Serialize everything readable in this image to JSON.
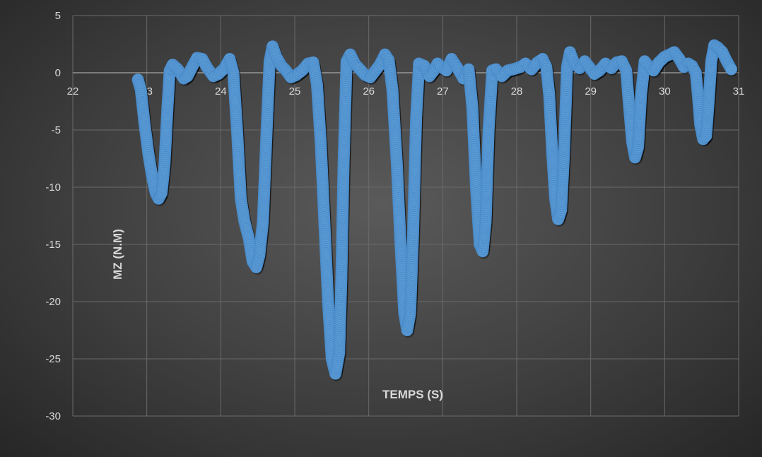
{
  "chart_data": {
    "type": "scatter",
    "title": "",
    "xlabel": "TEMPS (S)",
    "ylabel": "MZ (N.M)",
    "xlim": [
      22,
      31
    ],
    "ylim": [
      -30,
      5
    ],
    "x_ticks": [
      "22",
      "23",
      "24",
      "25",
      "26",
      "27",
      "28",
      "29",
      "30",
      "31"
    ],
    "y_ticks": [
      "5",
      "0",
      "-5",
      "-10",
      "-15",
      "-20",
      "-25",
      "-30"
    ],
    "grid": true,
    "legend": "none",
    "marker_color": "#5b9bd5",
    "series": [
      {
        "points": [
          [
            22.88,
            -0.6
          ],
          [
            22.92,
            -1.5
          ],
          [
            22.97,
            -4.5
          ],
          [
            23.02,
            -7.0
          ],
          [
            23.07,
            -9.0
          ],
          [
            23.12,
            -10.5
          ],
          [
            23.16,
            -11.0
          ],
          [
            23.2,
            -10.5
          ],
          [
            23.24,
            -8.0
          ],
          [
            23.28,
            -3.0
          ],
          [
            23.31,
            0.2
          ],
          [
            23.35,
            0.7
          ],
          [
            23.42,
            0.3
          ],
          [
            23.5,
            -0.5
          ],
          [
            23.55,
            -0.3
          ],
          [
            23.62,
            0.6
          ],
          [
            23.68,
            1.3
          ],
          [
            23.75,
            1.2
          ],
          [
            23.82,
            0.4
          ],
          [
            23.9,
            -0.3
          ],
          [
            23.97,
            -0.1
          ],
          [
            24.05,
            0.4
          ],
          [
            24.12,
            1.2
          ],
          [
            24.17,
            0.0
          ],
          [
            24.22,
            -5.0
          ],
          [
            24.27,
            -11.0
          ],
          [
            24.32,
            -13.0
          ],
          [
            24.38,
            -14.5
          ],
          [
            24.43,
            -16.5
          ],
          [
            24.48,
            -17.0
          ],
          [
            24.52,
            -16.0
          ],
          [
            24.57,
            -13.0
          ],
          [
            24.62,
            -5.0
          ],
          [
            24.66,
            1.0
          ],
          [
            24.7,
            2.3
          ],
          [
            24.75,
            1.4
          ],
          [
            24.82,
            0.6
          ],
          [
            24.88,
            0.2
          ],
          [
            24.95,
            -0.4
          ],
          [
            25.02,
            -0.2
          ],
          [
            25.1,
            0.2
          ],
          [
            25.18,
            0.8
          ],
          [
            25.25,
            0.9
          ],
          [
            25.3,
            -1.0
          ],
          [
            25.35,
            -6.0
          ],
          [
            25.4,
            -13.0
          ],
          [
            25.45,
            -20.0
          ],
          [
            25.5,
            -25.0
          ],
          [
            25.55,
            -26.3
          ],
          [
            25.6,
            -24.5
          ],
          [
            25.63,
            -18.0
          ],
          [
            25.66,
            -8.0
          ],
          [
            25.7,
            1.0
          ],
          [
            25.75,
            1.6
          ],
          [
            25.82,
            0.7
          ],
          [
            25.88,
            0.3
          ],
          [
            25.95,
            -0.2
          ],
          [
            26.02,
            -0.4
          ],
          [
            26.08,
            0.1
          ],
          [
            26.15,
            0.7
          ],
          [
            26.22,
            1.6
          ],
          [
            26.27,
            1.1
          ],
          [
            26.32,
            -1.5
          ],
          [
            26.38,
            -8.0
          ],
          [
            26.43,
            -15.0
          ],
          [
            26.48,
            -21.0
          ],
          [
            26.52,
            -22.5
          ],
          [
            26.56,
            -21.0
          ],
          [
            26.6,
            -14.0
          ],
          [
            26.64,
            -4.0
          ],
          [
            26.68,
            0.8
          ],
          [
            26.75,
            0.6
          ],
          [
            26.82,
            -0.3
          ],
          [
            26.88,
            0.2
          ],
          [
            26.93,
            0.8
          ],
          [
            26.98,
            0.5
          ],
          [
            27.05,
            0.2
          ],
          [
            27.12,
            1.2
          ],
          [
            27.2,
            0.4
          ],
          [
            27.28,
            -0.5
          ],
          [
            27.35,
            0.3
          ],
          [
            27.4,
            -3.0
          ],
          [
            27.45,
            -10.0
          ],
          [
            27.5,
            -15.0
          ],
          [
            27.54,
            -15.6
          ],
          [
            27.58,
            -13.0
          ],
          [
            27.62,
            -5.0
          ],
          [
            27.67,
            0.2
          ],
          [
            27.72,
            0.3
          ],
          [
            27.8,
            -0.3
          ],
          [
            27.88,
            0.2
          ],
          [
            27.95,
            0.3
          ],
          [
            28.05,
            0.5
          ],
          [
            28.12,
            0.8
          ],
          [
            28.2,
            0.3
          ],
          [
            28.28,
            0.9
          ],
          [
            28.35,
            1.2
          ],
          [
            28.4,
            0.5
          ],
          [
            28.44,
            -2.0
          ],
          [
            28.48,
            -7.0
          ],
          [
            28.52,
            -11.0
          ],
          [
            28.56,
            -12.8
          ],
          [
            28.6,
            -12.0
          ],
          [
            28.64,
            -7.0
          ],
          [
            28.68,
            0.5
          ],
          [
            28.72,
            1.8
          ],
          [
            28.78,
            0.8
          ],
          [
            28.85,
            0.4
          ],
          [
            28.92,
            1.0
          ],
          [
            28.98,
            0.5
          ],
          [
            29.05,
            -0.1
          ],
          [
            29.12,
            0.2
          ],
          [
            29.2,
            0.8
          ],
          [
            29.28,
            0.4
          ],
          [
            29.35,
            0.9
          ],
          [
            29.42,
            1.0
          ],
          [
            29.48,
            0.2
          ],
          [
            29.52,
            -3.0
          ],
          [
            29.56,
            -6.0
          ],
          [
            29.6,
            -7.4
          ],
          [
            29.64,
            -6.5
          ],
          [
            29.68,
            -2.0
          ],
          [
            29.73,
            1.0
          ],
          [
            29.78,
            0.6
          ],
          [
            29.85,
            0.2
          ],
          [
            29.92,
            0.9
          ],
          [
            30.0,
            1.4
          ],
          [
            30.07,
            1.6
          ],
          [
            30.13,
            1.8
          ],
          [
            30.2,
            1.2
          ],
          [
            30.26,
            0.5
          ],
          [
            30.32,
            0.8
          ],
          [
            30.37,
            0.6
          ],
          [
            30.42,
            0.0
          ],
          [
            30.45,
            -2.0
          ],
          [
            30.48,
            -4.5
          ],
          [
            30.52,
            -5.8
          ],
          [
            30.56,
            -5.5
          ],
          [
            30.6,
            -2.0
          ],
          [
            30.63,
            1.0
          ],
          [
            30.67,
            2.4
          ],
          [
            30.72,
            2.2
          ],
          [
            30.78,
            1.8
          ],
          [
            30.84,
            1.0
          ],
          [
            30.9,
            0.3
          ]
        ]
      }
    ]
  }
}
